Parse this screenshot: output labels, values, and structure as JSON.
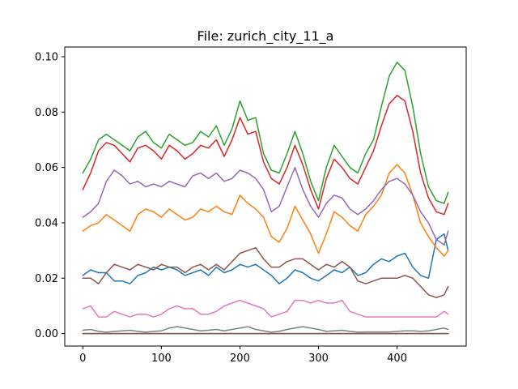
{
  "chart_data": {
    "type": "line",
    "title": "File: zurich_city_11_a",
    "xlabel": "",
    "ylabel": "",
    "xlim": [
      -23,
      488
    ],
    "ylim": [
      -0.0045,
      0.1035
    ],
    "xticks": [
      0,
      100,
      200,
      300,
      400
    ],
    "yticks": [
      0.0,
      0.02,
      0.04,
      0.06,
      0.08,
      0.1
    ],
    "ytick_labels": [
      "0.00",
      "0.02",
      "0.04",
      "0.06",
      "0.08",
      "0.10"
    ],
    "grid": false,
    "legend": "none",
    "series": [
      {
        "color": "#1f77b4",
        "x": [
          0,
          10,
          20,
          30,
          40,
          50,
          60,
          70,
          80,
          90,
          100,
          110,
          120,
          130,
          140,
          150,
          160,
          170,
          180,
          190,
          200,
          210,
          220,
          230,
          240,
          250,
          260,
          270,
          280,
          290,
          300,
          310,
          320,
          330,
          340,
          350,
          360,
          370,
          380,
          390,
          400,
          410,
          420,
          430,
          440,
          450,
          460,
          465
        ],
        "y": [
          0.021,
          0.023,
          0.022,
          0.022,
          0.019,
          0.019,
          0.018,
          0.021,
          0.022,
          0.024,
          0.023,
          0.024,
          0.023,
          0.021,
          0.022,
          0.023,
          0.021,
          0.024,
          0.022,
          0.023,
          0.025,
          0.024,
          0.025,
          0.023,
          0.021,
          0.018,
          0.02,
          0.023,
          0.022,
          0.02,
          0.019,
          0.021,
          0.023,
          0.022,
          0.024,
          0.021,
          0.022,
          0.025,
          0.027,
          0.026,
          0.028,
          0.029,
          0.024,
          0.021,
          0.02,
          0.034,
          0.036,
          0.03
        ]
      },
      {
        "color": "#ff7f0e",
        "x": [
          0,
          10,
          20,
          30,
          40,
          50,
          60,
          70,
          80,
          90,
          100,
          110,
          120,
          130,
          140,
          150,
          160,
          170,
          180,
          190,
          200,
          210,
          220,
          230,
          240,
          250,
          260,
          270,
          280,
          290,
          300,
          310,
          320,
          330,
          340,
          350,
          360,
          370,
          380,
          390,
          400,
          410,
          420,
          430,
          440,
          450,
          460,
          465
        ],
        "y": [
          0.037,
          0.039,
          0.04,
          0.043,
          0.041,
          0.039,
          0.037,
          0.043,
          0.045,
          0.044,
          0.042,
          0.045,
          0.043,
          0.041,
          0.042,
          0.045,
          0.044,
          0.046,
          0.044,
          0.043,
          0.05,
          0.047,
          0.045,
          0.042,
          0.035,
          0.033,
          0.038,
          0.046,
          0.041,
          0.036,
          0.029,
          0.036,
          0.044,
          0.042,
          0.039,
          0.037,
          0.043,
          0.046,
          0.05,
          0.058,
          0.061,
          0.058,
          0.05,
          0.04,
          0.035,
          0.031,
          0.028,
          0.03
        ]
      },
      {
        "color": "#2ca02c",
        "x": [
          0,
          10,
          20,
          30,
          40,
          50,
          60,
          70,
          80,
          90,
          100,
          110,
          120,
          130,
          140,
          150,
          160,
          170,
          180,
          190,
          200,
          210,
          220,
          230,
          240,
          250,
          260,
          270,
          280,
          290,
          300,
          310,
          320,
          330,
          340,
          350,
          360,
          370,
          380,
          390,
          400,
          410,
          420,
          430,
          440,
          450,
          460,
          465
        ],
        "y": [
          0.058,
          0.063,
          0.07,
          0.072,
          0.07,
          0.068,
          0.066,
          0.071,
          0.073,
          0.069,
          0.067,
          0.072,
          0.07,
          0.068,
          0.069,
          0.073,
          0.071,
          0.075,
          0.068,
          0.074,
          0.084,
          0.077,
          0.078,
          0.065,
          0.059,
          0.058,
          0.065,
          0.073,
          0.065,
          0.055,
          0.048,
          0.06,
          0.068,
          0.064,
          0.06,
          0.058,
          0.065,
          0.07,
          0.082,
          0.093,
          0.098,
          0.095,
          0.082,
          0.065,
          0.053,
          0.048,
          0.047,
          0.051
        ]
      },
      {
        "color": "#d62728",
        "x": [
          0,
          10,
          20,
          30,
          40,
          50,
          60,
          70,
          80,
          90,
          100,
          110,
          120,
          130,
          140,
          150,
          160,
          170,
          180,
          190,
          200,
          210,
          220,
          230,
          240,
          250,
          260,
          270,
          280,
          290,
          300,
          310,
          320,
          330,
          340,
          350,
          360,
          370,
          380,
          390,
          400,
          410,
          420,
          430,
          440,
          450,
          460,
          465
        ],
        "y": [
          0.052,
          0.058,
          0.066,
          0.069,
          0.068,
          0.065,
          0.062,
          0.067,
          0.068,
          0.066,
          0.063,
          0.068,
          0.066,
          0.063,
          0.065,
          0.068,
          0.067,
          0.07,
          0.064,
          0.07,
          0.078,
          0.072,
          0.073,
          0.062,
          0.056,
          0.054,
          0.06,
          0.068,
          0.061,
          0.052,
          0.045,
          0.056,
          0.063,
          0.06,
          0.056,
          0.054,
          0.06,
          0.066,
          0.075,
          0.083,
          0.086,
          0.084,
          0.073,
          0.058,
          0.049,
          0.044,
          0.043,
          0.047
        ]
      },
      {
        "color": "#9467bd",
        "x": [
          0,
          10,
          20,
          30,
          40,
          50,
          60,
          70,
          80,
          90,
          100,
          110,
          120,
          130,
          140,
          150,
          160,
          170,
          180,
          190,
          200,
          210,
          220,
          230,
          240,
          250,
          260,
          270,
          280,
          290,
          300,
          310,
          320,
          330,
          340,
          350,
          360,
          370,
          380,
          390,
          400,
          410,
          420,
          430,
          440,
          450,
          460,
          465
        ],
        "y": [
          0.042,
          0.044,
          0.047,
          0.055,
          0.059,
          0.057,
          0.054,
          0.055,
          0.053,
          0.054,
          0.053,
          0.055,
          0.054,
          0.053,
          0.057,
          0.058,
          0.056,
          0.058,
          0.055,
          0.056,
          0.059,
          0.058,
          0.056,
          0.052,
          0.044,
          0.046,
          0.053,
          0.06,
          0.052,
          0.046,
          0.042,
          0.047,
          0.05,
          0.049,
          0.045,
          0.043,
          0.045,
          0.048,
          0.052,
          0.055,
          0.056,
          0.054,
          0.05,
          0.044,
          0.04,
          0.034,
          0.032,
          0.037
        ]
      },
      {
        "color": "#8c564b",
        "x": [
          0,
          10,
          20,
          30,
          40,
          50,
          60,
          70,
          80,
          90,
          100,
          110,
          120,
          130,
          140,
          150,
          160,
          170,
          180,
          190,
          200,
          210,
          220,
          230,
          240,
          250,
          260,
          270,
          280,
          290,
          300,
          310,
          320,
          330,
          340,
          350,
          360,
          370,
          380,
          390,
          400,
          410,
          420,
          430,
          440,
          450,
          460,
          465
        ],
        "y": [
          0.02,
          0.02,
          0.018,
          0.022,
          0.025,
          0.024,
          0.023,
          0.025,
          0.024,
          0.023,
          0.025,
          0.024,
          0.024,
          0.022,
          0.024,
          0.025,
          0.023,
          0.025,
          0.023,
          0.026,
          0.029,
          0.03,
          0.031,
          0.027,
          0.024,
          0.024,
          0.026,
          0.027,
          0.027,
          0.025,
          0.023,
          0.025,
          0.024,
          0.026,
          0.024,
          0.019,
          0.018,
          0.019,
          0.02,
          0.02,
          0.02,
          0.021,
          0.02,
          0.017,
          0.014,
          0.013,
          0.014,
          0.017
        ]
      },
      {
        "color": "#e377c2",
        "x": [
          0,
          10,
          20,
          30,
          40,
          50,
          60,
          70,
          80,
          90,
          100,
          110,
          120,
          130,
          140,
          150,
          160,
          170,
          180,
          190,
          200,
          210,
          220,
          230,
          240,
          250,
          260,
          270,
          280,
          290,
          300,
          310,
          320,
          330,
          340,
          350,
          360,
          370,
          380,
          390,
          400,
          410,
          420,
          430,
          440,
          450,
          460,
          465
        ],
        "y": [
          0.009,
          0.01,
          0.006,
          0.006,
          0.008,
          0.007,
          0.006,
          0.007,
          0.007,
          0.006,
          0.007,
          0.009,
          0.01,
          0.009,
          0.009,
          0.007,
          0.007,
          0.008,
          0.01,
          0.011,
          0.012,
          0.011,
          0.01,
          0.009,
          0.006,
          0.007,
          0.008,
          0.012,
          0.012,
          0.011,
          0.012,
          0.011,
          0.011,
          0.012,
          0.008,
          0.007,
          0.006,
          0.006,
          0.006,
          0.006,
          0.006,
          0.006,
          0.006,
          0.006,
          0.006,
          0.006,
          0.008,
          0.007
        ]
      },
      {
        "color": "#7f7f7f",
        "x": [
          0,
          10,
          20,
          30,
          40,
          50,
          60,
          70,
          80,
          90,
          100,
          110,
          120,
          130,
          140,
          150,
          160,
          170,
          180,
          190,
          200,
          210,
          220,
          230,
          240,
          250,
          260,
          270,
          280,
          290,
          300,
          310,
          320,
          330,
          340,
          350,
          360,
          370,
          380,
          390,
          400,
          410,
          420,
          430,
          440,
          450,
          460,
          465
        ],
        "y": [
          0.0012,
          0.0015,
          0.0008,
          0.0005,
          0.0008,
          0.001,
          0.0012,
          0.0008,
          0.0005,
          0.0008,
          0.001,
          0.002,
          0.0025,
          0.002,
          0.0015,
          0.001,
          0.0012,
          0.0015,
          0.001,
          0.0015,
          0.002,
          0.0025,
          0.0015,
          0.001,
          0.0005,
          0.0008,
          0.0015,
          0.002,
          0.0025,
          0.002,
          0.0015,
          0.0008,
          0.001,
          0.0012,
          0.0008,
          0.0005,
          0.0006,
          0.0006,
          0.0006,
          0.0006,
          0.0008,
          0.001,
          0.001,
          0.0008,
          0.001,
          0.0015,
          0.002,
          0.0015
        ]
      },
      {
        "color": "#bcbd22",
        "x": [
          0,
          465
        ],
        "y": [
          0.0,
          0.0
        ]
      },
      {
        "color": "#17becf",
        "x": [
          0,
          465
        ],
        "y": [
          0.0,
          0.0
        ]
      },
      {
        "color": "#8c564b",
        "x": [
          0,
          465
        ],
        "y": [
          0.0,
          0.0
        ]
      }
    ]
  }
}
